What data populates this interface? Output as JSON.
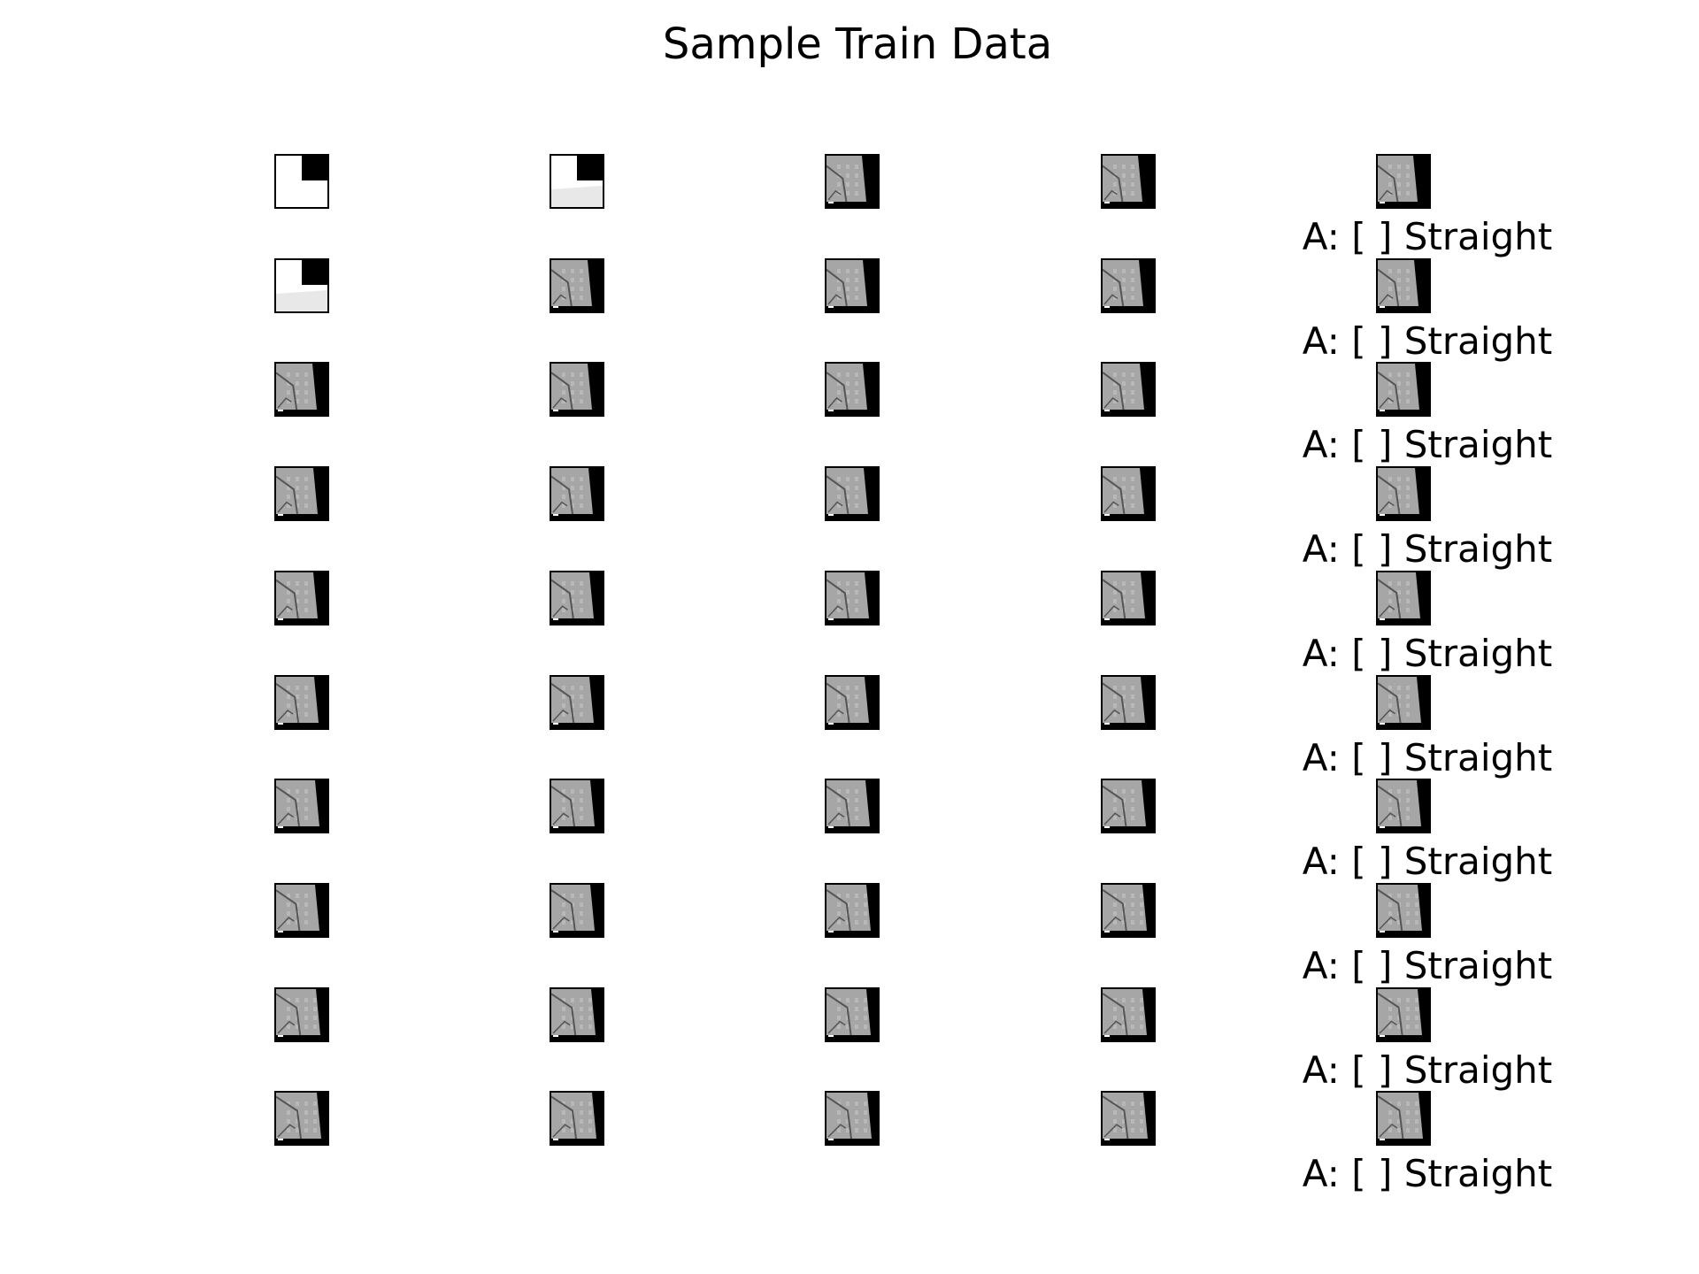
{
  "figure": {
    "title": "Sample Train Data"
  },
  "grid": {
    "rows": 10,
    "columns": 5,
    "frames": [
      [
        "blank-corner",
        "blank-corner-floor",
        "road-scene",
        "road-scene",
        "road-scene"
      ],
      [
        "blank-corner-floor",
        "road-scene",
        "road-scene",
        "road-scene",
        "road-scene"
      ],
      [
        "road-scene",
        "road-scene",
        "road-scene",
        "road-scene",
        "road-scene"
      ],
      [
        "road-scene",
        "road-scene",
        "road-scene",
        "road-scene",
        "road-scene"
      ],
      [
        "road-scene",
        "road-scene",
        "road-scene",
        "road-scene",
        "road-scene"
      ],
      [
        "road-scene",
        "road-scene",
        "road-scene",
        "road-scene",
        "road-scene"
      ],
      [
        "road-scene",
        "road-scene",
        "road-scene",
        "road-scene",
        "road-scene"
      ],
      [
        "road-scene",
        "road-scene",
        "road-scene",
        "road-scene",
        "road-scene"
      ],
      [
        "road-scene",
        "road-scene",
        "road-scene",
        "road-scene",
        "road-scene"
      ],
      [
        "road-scene",
        "road-scene",
        "road-scene",
        "road-scene",
        "road-scene"
      ]
    ]
  },
  "captions": [
    "A: [ ] Straight",
    "A: [ ] Straight",
    "A: [ ] Straight",
    "A: [ ] Straight",
    "A: [ ] Straight",
    "A: [ ] Straight",
    "A: [ ] Straight",
    "A: [ ] Straight",
    "A: [ ] Straight",
    "A: [ ] Straight"
  ],
  "colors": {
    "background": "#ffffff",
    "frame_border": "#000000",
    "scene_gray": "#a6a6a6",
    "scene_dark": "#000000",
    "floor_light": "#e8e8e8"
  }
}
